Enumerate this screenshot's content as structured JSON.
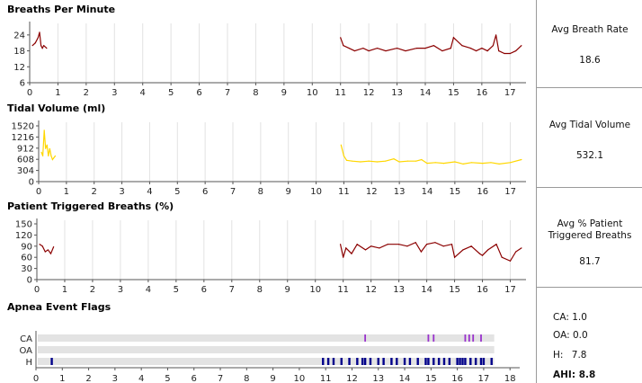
{
  "chart_data": [
    {
      "type": "line",
      "title": "Breaths Per Minute",
      "color": "#8b0000",
      "xlim": [
        0,
        17.5
      ],
      "ylim": [
        6,
        27
      ],
      "y_ticks": [
        6,
        12,
        18,
        24
      ],
      "x_ticks": [
        0,
        1,
        2,
        3,
        4,
        5,
        6,
        7,
        8,
        9,
        10,
        11,
        12,
        13,
        14,
        15,
        16,
        17
      ],
      "series": [
        {
          "x": [
            0.1,
            0.2,
            0.3,
            0.35,
            0.4,
            0.45,
            0.5,
            0.6,
            11.0,
            11.1,
            11.3,
            11.5,
            11.8,
            12.0,
            12.3,
            12.6,
            13.0,
            13.3,
            13.7,
            14.0,
            14.3,
            14.6,
            14.9,
            15.0,
            15.3,
            15.6,
            15.8,
            16.0,
            16.2,
            16.4,
            16.5,
            16.6,
            16.8,
            17.0,
            17.2,
            17.4
          ],
          "y": [
            20,
            21,
            23,
            25,
            20,
            19,
            20,
            19,
            23,
            20,
            19,
            18,
            19,
            18,
            19,
            18,
            19,
            18,
            19,
            19,
            20,
            18,
            19,
            23,
            20,
            19,
            18,
            19,
            18,
            20,
            24,
            18,
            17,
            17,
            18,
            20
          ]
        }
      ]
    },
    {
      "type": "line",
      "title": "Tidal Volume (ml)",
      "color": "#ffd700",
      "xlim": [
        0,
        17.5
      ],
      "ylim": [
        0,
        1520
      ],
      "y_ticks": [
        0,
        304,
        608,
        912,
        1216,
        1520
      ],
      "x_ticks": [
        0,
        1,
        2,
        3,
        4,
        5,
        6,
        7,
        8,
        9,
        10,
        11,
        12,
        13,
        14,
        15,
        16,
        17
      ],
      "series": [
        {
          "x": [
            0.1,
            0.15,
            0.2,
            0.25,
            0.3,
            0.35,
            0.4,
            0.45,
            0.5,
            0.6,
            10.9,
            11.0,
            11.1,
            11.3,
            11.6,
            11.9,
            12.2,
            12.5,
            12.8,
            13.0,
            13.3,
            13.6,
            13.8,
            14.0,
            14.3,
            14.6,
            15.0,
            15.3,
            15.6,
            16.0,
            16.3,
            16.6,
            17.0,
            17.4
          ],
          "y": [
            800,
            700,
            1400,
            900,
            1000,
            700,
            900,
            700,
            600,
            700,
            1000,
            700,
            580,
            560,
            540,
            560,
            540,
            560,
            620,
            540,
            560,
            560,
            600,
            500,
            520,
            500,
            540,
            480,
            520,
            500,
            520,
            480,
            520,
            600
          ]
        }
      ]
    },
    {
      "type": "line",
      "title": "Patient Triggered Breaths (%)",
      "color": "#8b0000",
      "xlim": [
        0,
        17.5
      ],
      "ylim": [
        0,
        150
      ],
      "y_ticks": [
        0,
        30,
        60,
        90,
        120,
        150
      ],
      "x_ticks": [
        0,
        1,
        2,
        3,
        4,
        5,
        6,
        7,
        8,
        9,
        10,
        11,
        12,
        13,
        14,
        15,
        16,
        17
      ],
      "series": [
        {
          "x": [
            0.1,
            0.2,
            0.3,
            0.4,
            0.5,
            0.6,
            10.9,
            11.0,
            11.1,
            11.3,
            11.5,
            11.8,
            12.0,
            12.3,
            12.6,
            13.0,
            13.3,
            13.6,
            13.8,
            14.0,
            14.3,
            14.6,
            14.9,
            15.0,
            15.3,
            15.6,
            15.9,
            16.0,
            16.2,
            16.5,
            16.7,
            17.0,
            17.2,
            17.4
          ],
          "y": [
            95,
            90,
            75,
            80,
            70,
            88,
            95,
            60,
            85,
            70,
            95,
            80,
            90,
            85,
            95,
            95,
            90,
            100,
            75,
            95,
            100,
            90,
            95,
            60,
            80,
            90,
            70,
            65,
            80,
            95,
            60,
            50,
            75,
            85
          ]
        }
      ]
    },
    {
      "type": "scatter",
      "title": "Apnea Event Flags",
      "xlim": [
        0,
        18.3
      ],
      "x_ticks": [
        0,
        1,
        2,
        3,
        4,
        5,
        6,
        7,
        8,
        9,
        10,
        11,
        12,
        13,
        14,
        15,
        16,
        17,
        18
      ],
      "categories": [
        "CA",
        "OA",
        "H"
      ],
      "colors": {
        "CA": "#9932cc",
        "OA": "#1e90ff",
        "H": "#00008b"
      },
      "events": {
        "CA": [
          12.5,
          14.9,
          15.1,
          16.3,
          16.45,
          16.6,
          16.9
        ],
        "OA": [],
        "H": [
          0.6,
          10.9,
          11.1,
          11.3,
          11.6,
          11.9,
          12.2,
          12.4,
          12.5,
          12.7,
          13.0,
          13.2,
          13.5,
          13.7,
          14.0,
          14.2,
          14.5,
          14.8,
          14.9,
          15.1,
          15.3,
          15.5,
          15.7,
          16.0,
          16.1,
          16.2,
          16.3,
          16.5,
          16.7,
          16.9,
          17.0,
          17.3
        ]
      }
    }
  ],
  "stats": {
    "breath_rate_label": "Avg Breath Rate",
    "breath_rate_value": "18.6",
    "tidal_volume_label": "Avg Tidal Volume",
    "tidal_volume_value": "532.1",
    "patient_triggered_label_1": "Avg % Patient",
    "patient_triggered_label_2": "Triggered Breaths",
    "patient_triggered_value": "81.7",
    "ca_label": "CA:",
    "ca_value": "1.0",
    "oa_label": "OA:",
    "oa_value": "0.0",
    "h_label": "H:",
    "h_value": "7.8",
    "ahi_label": "AHI:",
    "ahi_value": "8.8"
  }
}
